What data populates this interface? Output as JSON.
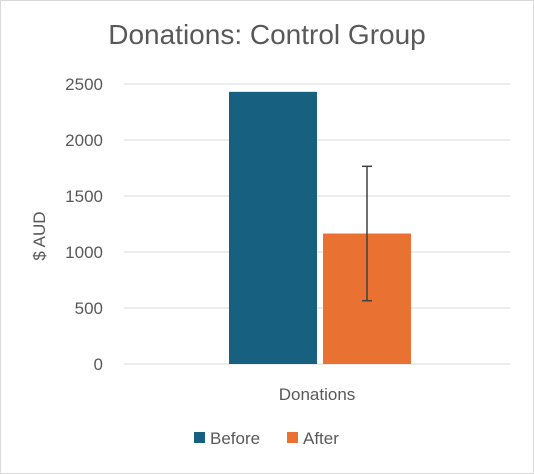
{
  "chart_data": {
    "type": "bar",
    "title": "Donations: Control Group",
    "xlabel": "",
    "ylabel": "$ AUD",
    "categories": [
      "Donations"
    ],
    "series": [
      {
        "name": "Before",
        "values": [
          2430
        ],
        "color": "#17607f"
      },
      {
        "name": "After",
        "values": [
          1165
        ],
        "color": "#e97132",
        "error": [
          600
        ]
      }
    ],
    "ylim": [
      0,
      2500
    ],
    "yticks": [
      0,
      500,
      1000,
      1500,
      2000,
      2500
    ],
    "grid": true,
    "legend_position": "bottom"
  }
}
